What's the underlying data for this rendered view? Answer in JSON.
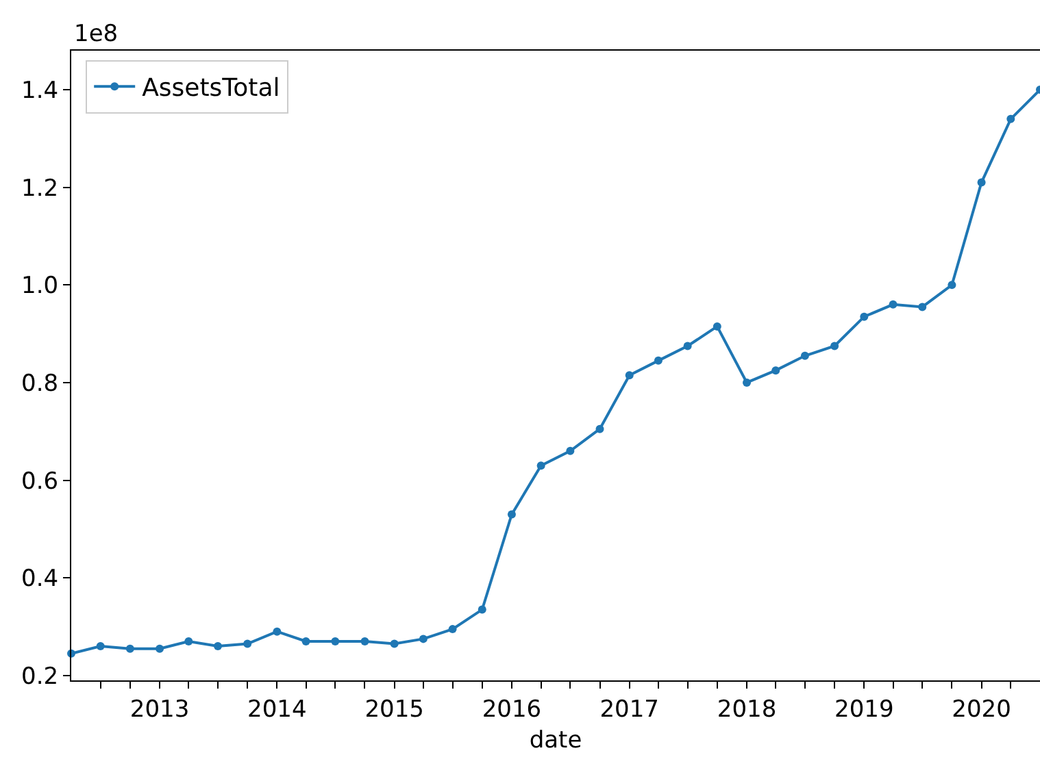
{
  "chart_data": {
    "type": "line",
    "xlabel": "date",
    "annotations": [
      "1e8"
    ],
    "x": [
      "2012-04",
      "2012-07",
      "2012-10",
      "2013-01",
      "2013-04",
      "2013-07",
      "2013-10",
      "2014-01",
      "2014-04",
      "2014-07",
      "2014-10",
      "2015-01",
      "2015-04",
      "2015-07",
      "2015-10",
      "2016-01",
      "2016-04",
      "2016-07",
      "2016-10",
      "2017-01",
      "2017-04",
      "2017-07",
      "2017-10",
      "2018-01",
      "2018-04",
      "2018-07",
      "2018-10",
      "2019-01",
      "2019-04",
      "2019-07",
      "2019-10",
      "2020-01",
      "2020-04",
      "2020-07"
    ],
    "series": [
      {
        "name": "AssetsTotal",
        "color": "#1f77b4",
        "values": [
          0.245,
          0.26,
          0.255,
          0.255,
          0.27,
          0.26,
          0.265,
          0.29,
          0.27,
          0.27,
          0.27,
          0.265,
          0.275,
          0.295,
          0.335,
          0.53,
          0.63,
          0.66,
          0.705,
          0.815,
          0.845,
          0.875,
          0.915,
          0.8,
          0.825,
          0.855,
          0.875,
          0.935,
          0.96,
          0.955,
          1.0,
          1.21,
          1.34,
          1.4
        ]
      }
    ],
    "xlim": [
      "2012-04",
      "2020-07"
    ],
    "xticks": [
      {
        "value": "2012-07",
        "label": null
      },
      {
        "value": "2012-10",
        "label": null
      },
      {
        "value": "2013-01",
        "label": "2013"
      },
      {
        "value": "2013-04",
        "label": null
      },
      {
        "value": "2013-07",
        "label": null
      },
      {
        "value": "2013-10",
        "label": null
      },
      {
        "value": "2014-01",
        "label": "2014"
      },
      {
        "value": "2014-04",
        "label": null
      },
      {
        "value": "2014-07",
        "label": null
      },
      {
        "value": "2014-10",
        "label": null
      },
      {
        "value": "2015-01",
        "label": "2015"
      },
      {
        "value": "2015-04",
        "label": null
      },
      {
        "value": "2015-07",
        "label": null
      },
      {
        "value": "2015-10",
        "label": null
      },
      {
        "value": "2016-01",
        "label": "2016"
      },
      {
        "value": "2016-04",
        "label": null
      },
      {
        "value": "2016-07",
        "label": null
      },
      {
        "value": "2016-10",
        "label": null
      },
      {
        "value": "2017-01",
        "label": "2017"
      },
      {
        "value": "2017-04",
        "label": null
      },
      {
        "value": "2017-07",
        "label": null
      },
      {
        "value": "2017-10",
        "label": null
      },
      {
        "value": "2018-01",
        "label": "2018"
      },
      {
        "value": "2018-04",
        "label": null
      },
      {
        "value": "2018-07",
        "label": null
      },
      {
        "value": "2018-10",
        "label": null
      },
      {
        "value": "2019-01",
        "label": "2019"
      },
      {
        "value": "2019-04",
        "label": null
      },
      {
        "value": "2019-07",
        "label": null
      },
      {
        "value": "2019-10",
        "label": null
      },
      {
        "value": "2020-01",
        "label": "2020"
      },
      {
        "value": "2020-04",
        "label": null
      }
    ],
    "ylim": [
      0.19,
      1.48
    ],
    "yticks": [
      0.2,
      0.4,
      0.6,
      0.8,
      {
        "value": 1.0,
        "label": "1.0"
      },
      1.2,
      1.4
    ],
    "grid": false,
    "legend": "top left",
    "marker": "circle",
    "line_style": "solid"
  }
}
